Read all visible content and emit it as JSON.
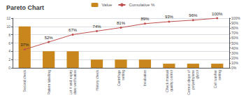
{
  "chart_data": {
    "type": "bar",
    "title": "Pareto Chart",
    "categories": [
      "Second check",
      "Patient labelling",
      "Lot # and expiry\ndate verification",
      "History check",
      "Centrifuge\nsetting",
      "Incubation",
      "Check manual\nquality control",
      "Correct drops of\npolyethylene\nglycol",
      "Cell washer\nsetting"
    ],
    "series": [
      {
        "name": "Value",
        "type": "bar",
        "color": "#C8861C",
        "values": [
          10,
          4,
          4,
          2,
          2,
          2,
          1,
          1,
          1
        ]
      },
      {
        "name": "Cumulative %",
        "type": "line",
        "axis": "y2",
        "color": "#C0504D",
        "marker": "circle",
        "data_labels": true,
        "values": [
          37,
          52,
          67,
          74,
          81,
          89,
          93,
          96,
          100
        ],
        "value_labels": [
          "37%",
          "52%",
          "67%",
          "74%",
          "81%",
          "89%",
          "93%",
          "96%",
          "100%"
        ]
      }
    ],
    "ylim": [
      0,
      12
    ],
    "yticks": [
      0,
      2,
      4,
      6,
      8,
      10,
      12
    ],
    "y2lim": [
      0,
      100
    ],
    "y2ticks": [
      {
        "value": 0,
        "label": "0%"
      },
      {
        "value": 10,
        "label": "10%"
      },
      {
        "value": 20,
        "label": "20%"
      },
      {
        "value": 30,
        "label": "30%"
      },
      {
        "value": 40,
        "label": "40%"
      },
      {
        "value": 50,
        "label": "50%"
      },
      {
        "value": 60,
        "label": "60%"
      },
      {
        "value": 70,
        "label": "70%"
      },
      {
        "value": 80,
        "label": "80%"
      },
      {
        "value": 90,
        "label": "90%"
      },
      {
        "value": 100,
        "label": "100%"
      }
    ],
    "grid": true,
    "legend": "top"
  }
}
